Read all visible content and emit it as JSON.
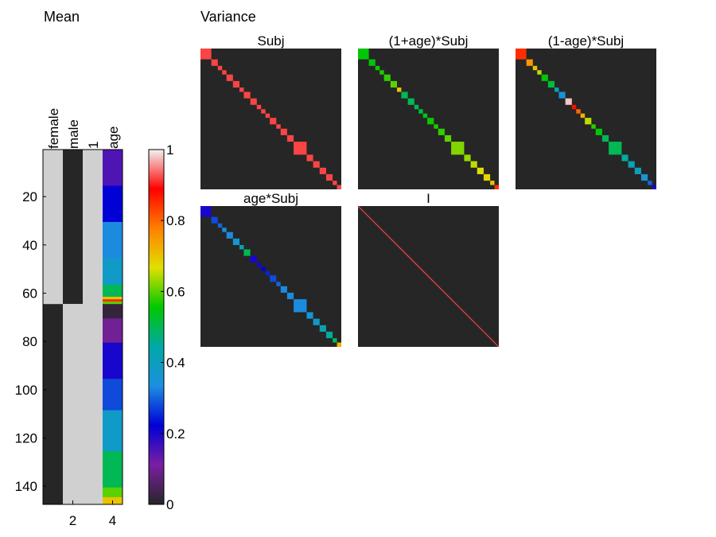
{
  "page": {
    "mean_heading": "Mean",
    "variance_heading": "Variance"
  },
  "colors": {
    "background": "#ffffff",
    "panel_dark": "#262626",
    "indicator_light": "#d0d0d0",
    "indicator_dark": "#262626",
    "colormap": [
      "#262626",
      "#7a1fa2",
      "#0000d6",
      "#1c8fe0",
      "#00a8a8",
      "#00c800",
      "#e0e000",
      "#ff8000",
      "#ff0000",
      "#f2f2f2"
    ]
  },
  "chart_data": [
    {
      "id": "mean",
      "type": "heatmap",
      "title": "Mean",
      "columns": [
        "female",
        "male",
        "1",
        "age"
      ],
      "n_rows": 147,
      "female_rows": [
        1,
        64
      ],
      "male_rows": [
        65,
        147
      ],
      "age_segments": [
        {
          "rows": [
            1,
            15
          ],
          "value": 0.15
        },
        {
          "rows": [
            16,
            30
          ],
          "value": 0.22
        },
        {
          "rows": [
            31,
            45
          ],
          "value": 0.33
        },
        {
          "rows": [
            46,
            56
          ],
          "value": 0.38
        },
        {
          "rows": [
            57,
            61
          ],
          "value": 0.5
        },
        {
          "rows": [
            62,
            62
          ],
          "value": 0.7
        },
        {
          "rows": [
            63,
            63
          ],
          "value": 0.85
        },
        {
          "rows": [
            64,
            64
          ],
          "value": 0.6
        },
        {
          "rows": [
            65,
            70
          ],
          "value": 0.02
        },
        {
          "rows": [
            71,
            80
          ],
          "value": 0.1
        },
        {
          "rows": [
            81,
            95
          ],
          "value": 0.2
        },
        {
          "rows": [
            96,
            108
          ],
          "value": 0.28
        },
        {
          "rows": [
            109,
            125
          ],
          "value": 0.38
        },
        {
          "rows": [
            126,
            140
          ],
          "value": 0.5
        },
        {
          "rows": [
            141,
            144
          ],
          "value": 0.6
        },
        {
          "rows": [
            145,
            147
          ],
          "value": 0.7
        }
      ],
      "x_ticks": [
        "2",
        "4"
      ],
      "y_ticks": [
        20,
        40,
        60,
        80,
        100,
        120,
        140
      ]
    },
    {
      "id": "colorbar",
      "type": "heatmap",
      "range": [
        0,
        1
      ],
      "ticks": [
        "0",
        "0.2",
        "0.4",
        "0.6",
        "0.8",
        "1"
      ]
    },
    {
      "id": "subj",
      "type": "heatmap",
      "title": "Subj",
      "diagonal_blocks": [
        {
          "size": 5,
          "value": 0.92
        },
        {
          "size": 3,
          "value": 0.92
        },
        {
          "size": 2,
          "value": 0.92
        },
        {
          "size": 2,
          "value": 0.92
        },
        {
          "size": 3,
          "value": 0.92
        },
        {
          "size": 3,
          "value": 0.92
        },
        {
          "size": 2,
          "value": 0.92
        },
        {
          "size": 3,
          "value": 0.92
        },
        {
          "size": 3,
          "value": 0.92
        },
        {
          "size": 2,
          "value": 0.92
        },
        {
          "size": 2,
          "value": 0.92
        },
        {
          "size": 2,
          "value": 0.92
        },
        {
          "size": 3,
          "value": 0.92
        },
        {
          "size": 2,
          "value": 0.92
        },
        {
          "size": 3,
          "value": 0.92
        },
        {
          "size": 3,
          "value": 0.92
        },
        {
          "size": 6,
          "value": 0.92
        },
        {
          "size": 3,
          "value": 0.92
        },
        {
          "size": 3,
          "value": 0.92
        },
        {
          "size": 3,
          "value": 0.92
        },
        {
          "size": 3,
          "value": 0.92
        },
        {
          "size": 2,
          "value": 0.92
        },
        {
          "size": 2,
          "value": 0.92
        }
      ]
    },
    {
      "id": "one_plus_age",
      "type": "heatmap",
      "title": "(1+age)*Subj",
      "diagonal_blocks": [
        {
          "size": 5,
          "value": 0.55
        },
        {
          "size": 3,
          "value": 0.55
        },
        {
          "size": 2,
          "value": 0.56
        },
        {
          "size": 2,
          "value": 0.57
        },
        {
          "size": 3,
          "value": 0.58
        },
        {
          "size": 3,
          "value": 0.6
        },
        {
          "size": 2,
          "value": 0.7
        },
        {
          "size": 3,
          "value": 0.5
        },
        {
          "size": 3,
          "value": 0.5
        },
        {
          "size": 2,
          "value": 0.5
        },
        {
          "size": 2,
          "value": 0.52
        },
        {
          "size": 2,
          "value": 0.54
        },
        {
          "size": 3,
          "value": 0.56
        },
        {
          "size": 2,
          "value": 0.57
        },
        {
          "size": 3,
          "value": 0.58
        },
        {
          "size": 3,
          "value": 0.6
        },
        {
          "size": 6,
          "value": 0.62
        },
        {
          "size": 3,
          "value": 0.63
        },
        {
          "size": 3,
          "value": 0.65
        },
        {
          "size": 3,
          "value": 0.67
        },
        {
          "size": 3,
          "value": 0.68
        },
        {
          "size": 2,
          "value": 0.7
        },
        {
          "size": 2,
          "value": 0.85
        }
      ]
    },
    {
      "id": "one_minus_age",
      "type": "heatmap",
      "title": "(1-age)*Subj",
      "diagonal_blocks": [
        {
          "size": 5,
          "value": 0.85
        },
        {
          "size": 3,
          "value": 0.75
        },
        {
          "size": 2,
          "value": 0.7
        },
        {
          "size": 2,
          "value": 0.65
        },
        {
          "size": 3,
          "value": 0.55
        },
        {
          "size": 3,
          "value": 0.52
        },
        {
          "size": 2,
          "value": 0.4
        },
        {
          "size": 3,
          "value": 0.35
        },
        {
          "size": 3,
          "value": 0.98
        },
        {
          "size": 2,
          "value": 0.88
        },
        {
          "size": 2,
          "value": 0.8
        },
        {
          "size": 2,
          "value": 0.72
        },
        {
          "size": 3,
          "value": 0.65
        },
        {
          "size": 2,
          "value": 0.58
        },
        {
          "size": 3,
          "value": 0.55
        },
        {
          "size": 3,
          "value": 0.5
        },
        {
          "size": 6,
          "value": 0.5
        },
        {
          "size": 3,
          "value": 0.45
        },
        {
          "size": 3,
          "value": 0.42
        },
        {
          "size": 3,
          "value": 0.4
        },
        {
          "size": 3,
          "value": 0.36
        },
        {
          "size": 2,
          "value": 0.3
        },
        {
          "size": 2,
          "value": 0.2
        }
      ]
    },
    {
      "id": "age_subj",
      "type": "heatmap",
      "title": "age*Subj",
      "diagonal_blocks": [
        {
          "size": 5,
          "value": 0.2
        },
        {
          "size": 3,
          "value": 0.28
        },
        {
          "size": 2,
          "value": 0.3
        },
        {
          "size": 2,
          "value": 0.33
        },
        {
          "size": 3,
          "value": 0.33
        },
        {
          "size": 3,
          "value": 0.36
        },
        {
          "size": 2,
          "value": 0.42
        },
        {
          "size": 3,
          "value": 0.5
        },
        {
          "size": 3,
          "value": 0.2
        },
        {
          "size": 2,
          "value": 0.2
        },
        {
          "size": 2,
          "value": 0.22
        },
        {
          "size": 2,
          "value": 0.25
        },
        {
          "size": 3,
          "value": 0.28
        },
        {
          "size": 2,
          "value": 0.3
        },
        {
          "size": 3,
          "value": 0.33
        },
        {
          "size": 3,
          "value": 0.33
        },
        {
          "size": 6,
          "value": 0.33
        },
        {
          "size": 3,
          "value": 0.36
        },
        {
          "size": 3,
          "value": 0.38
        },
        {
          "size": 3,
          "value": 0.42
        },
        {
          "size": 3,
          "value": 0.45
        },
        {
          "size": 2,
          "value": 0.5
        },
        {
          "size": 2,
          "value": 0.72
        }
      ]
    },
    {
      "id": "identity",
      "type": "heatmap",
      "title": "I",
      "diagonal_value": 0.92
    }
  ]
}
